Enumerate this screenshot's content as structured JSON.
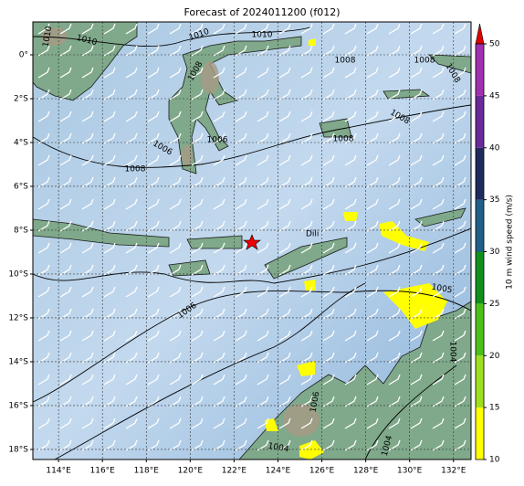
{
  "title": "Forecast of 2024011200 (f012)",
  "map": {
    "xlim": [
      112.83,
      132.8
    ],
    "ylim": [
      -18.46,
      1.5
    ],
    "xticks": [
      {
        "value": 114,
        "label": "114°E"
      },
      {
        "value": 116,
        "label": "116°E"
      },
      {
        "value": 118,
        "label": "118°E"
      },
      {
        "value": 120,
        "label": "120°E"
      },
      {
        "value": 122,
        "label": "122°E"
      },
      {
        "value": 124,
        "label": "124°E"
      },
      {
        "value": 126,
        "label": "126°E"
      },
      {
        "value": 128,
        "label": "128°E"
      },
      {
        "value": 130,
        "label": "130°E"
      },
      {
        "value": 132,
        "label": "132°E"
      }
    ],
    "yticks": [
      {
        "value": 0,
        "label": "0°"
      },
      {
        "value": -2,
        "label": "2°S"
      },
      {
        "value": -4,
        "label": "4°S"
      },
      {
        "value": -6,
        "label": "6°S"
      },
      {
        "value": -8,
        "label": "8°S"
      },
      {
        "value": -10,
        "label": "10°S"
      },
      {
        "value": -12,
        "label": "12°S"
      },
      {
        "value": -14,
        "label": "14°S"
      },
      {
        "value": -16,
        "label": "16°S"
      },
      {
        "value": -18,
        "label": "18°S"
      }
    ],
    "grid": true,
    "place_label": "Dili",
    "contour_labels": [
      1010,
      1010,
      1010,
      1010,
      1008,
      1008,
      1008,
      1008,
      1008,
      1008,
      1006,
      1006,
      1008,
      1006,
      1005,
      1004,
      1006,
      1004,
      1004
    ]
  },
  "colorbar": {
    "label": "10 m wind speed (m/s)",
    "lim": [
      10,
      50
    ],
    "ticks": [
      10,
      15,
      20,
      25,
      30,
      35,
      40,
      45,
      50
    ],
    "colors": [
      "#ffff00",
      "#9ee01e",
      "#4cc01a",
      "#10901a",
      "#1f5f88",
      "#1e2a5c",
      "#6a2a9a",
      "#a030b0"
    ]
  }
}
